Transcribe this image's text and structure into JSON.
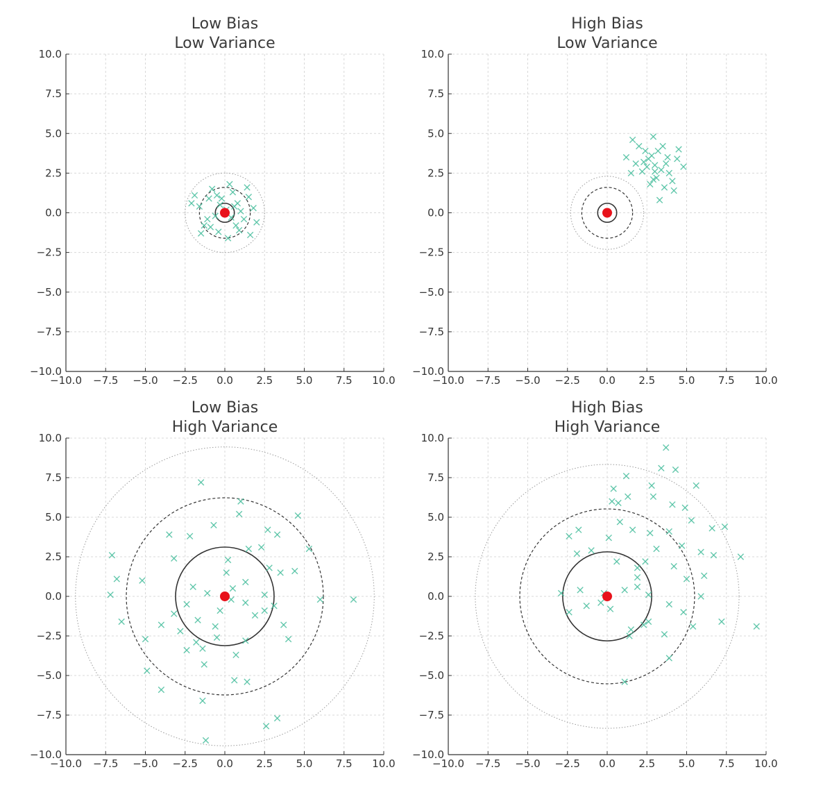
{
  "chart_data": [
    {
      "type": "scatter",
      "title_line1": "Low Bias",
      "title_line2": "Low Variance",
      "xlim": [
        -10,
        10
      ],
      "ylim": [
        -10,
        10
      ],
      "grid": true,
      "x_ticks": [
        "−10.0",
        "−7.5",
        "−5.0",
        "−2.5",
        "0.0",
        "2.5",
        "5.0",
        "7.5",
        "10.0"
      ],
      "y_ticks": [
        "−10.0",
        "−7.5",
        "−5.0",
        "−2.5",
        "0.0",
        "2.5",
        "5.0",
        "7.5",
        "10.0"
      ],
      "target": [
        0,
        0
      ],
      "rings": [
        0.6,
        1.6,
        2.5
      ],
      "points": [
        [
          0.1,
          0.2
        ],
        [
          -0.3,
          0.5
        ],
        [
          0.4,
          -0.3
        ],
        [
          -0.6,
          -0.2
        ],
        [
          0.8,
          0.6
        ],
        [
          -1.0,
          0.9
        ],
        [
          1.2,
          -0.4
        ],
        [
          -1.3,
          -0.8
        ],
        [
          0.5,
          1.3
        ],
        [
          -0.4,
          -1.2
        ],
        [
          1.5,
          1.0
        ],
        [
          -1.6,
          0.4
        ],
        [
          0.9,
          -1.1
        ],
        [
          -0.8,
          1.5
        ],
        [
          1.8,
          0.3
        ],
        [
          -1.5,
          -1.3
        ],
        [
          0.2,
          -1.6
        ],
        [
          1.4,
          1.6
        ],
        [
          -1.9,
          1.1
        ],
        [
          0.7,
          -0.8
        ],
        [
          -0.2,
          0.9
        ],
        [
          1.0,
          0.1
        ],
        [
          -1.1,
          -0.4
        ],
        [
          0.3,
          1.8
        ],
        [
          2.0,
          -0.6
        ],
        [
          -2.1,
          0.6
        ],
        [
          1.6,
          -1.4
        ],
        [
          -0.5,
          1.1
        ],
        [
          0.6,
          0.4
        ],
        [
          -0.9,
          -0.9
        ]
      ]
    },
    {
      "type": "scatter",
      "title_line1": "High Bias",
      "title_line2": "Low Variance",
      "xlim": [
        -10,
        10
      ],
      "ylim": [
        -10,
        10
      ],
      "grid": true,
      "x_ticks": [
        "−10.0",
        "−7.5",
        "−5.0",
        "−2.5",
        "0.0",
        "2.5",
        "5.0",
        "7.5",
        "10.0"
      ],
      "y_ticks": [
        "−10.0",
        "−7.5",
        "−5.0",
        "−2.5",
        "0.0",
        "2.5",
        "5.0",
        "7.5",
        "10.0"
      ],
      "target": [
        0,
        0
      ],
      "rings": [
        0.6,
        1.6,
        2.3
      ],
      "points": [
        [
          3.0,
          3.0
        ],
        [
          2.6,
          3.4
        ],
        [
          3.4,
          2.7
        ],
        [
          2.2,
          2.6
        ],
        [
          3.8,
          3.5
        ],
        [
          2.9,
          2.1
        ],
        [
          3.2,
          3.9
        ],
        [
          2.4,
          3.9
        ],
        [
          3.9,
          2.5
        ],
        [
          1.8,
          3.1
        ],
        [
          4.4,
          3.4
        ],
        [
          2.7,
          1.8
        ],
        [
          3.5,
          4.2
        ],
        [
          2.0,
          4.2
        ],
        [
          4.1,
          2.0
        ],
        [
          1.5,
          2.5
        ],
        [
          2.9,
          4.8
        ],
        [
          3.6,
          1.6
        ],
        [
          4.8,
          2.9
        ],
        [
          1.6,
          4.6
        ],
        [
          4.2,
          1.4
        ],
        [
          3.3,
          0.8
        ],
        [
          1.2,
          3.5
        ],
        [
          3.0,
          2.6
        ],
        [
          2.5,
          2.9
        ],
        [
          3.7,
          3.1
        ],
        [
          2.3,
          3.2
        ],
        [
          4.5,
          4.0
        ],
        [
          2.8,
          3.6
        ],
        [
          3.1,
          2.2
        ]
      ]
    },
    {
      "type": "scatter",
      "title_line1": "Low Bias",
      "title_line2": "High Variance",
      "xlim": [
        -10,
        10
      ],
      "ylim": [
        -10,
        10
      ],
      "grid": true,
      "x_ticks": [
        "−10.0",
        "−7.5",
        "−5.0",
        "−2.5",
        "0.0",
        "2.5",
        "5.0",
        "7.5",
        "10.0"
      ],
      "y_ticks": [
        "−10.0",
        "−7.5",
        "−5.0",
        "−2.5",
        "0.0",
        "2.5",
        "5.0",
        "7.5",
        "10.0"
      ],
      "target": [
        0,
        0
      ],
      "rings": [
        3.1,
        6.2,
        9.4
      ],
      "points": [
        [
          -1.5,
          7.2
        ],
        [
          1.0,
          6.0
        ],
        [
          -3.5,
          3.9
        ],
        [
          0.9,
          5.2
        ],
        [
          -0.7,
          4.5
        ],
        [
          2.7,
          4.2
        ],
        [
          3.3,
          3.9
        ],
        [
          4.6,
          5.1
        ],
        [
          -2.2,
          3.8
        ],
        [
          -3.2,
          2.4
        ],
        [
          1.5,
          3.0
        ],
        [
          2.3,
          3.1
        ],
        [
          5.3,
          3.0
        ],
        [
          -7.1,
          2.6
        ],
        [
          -6.8,
          1.1
        ],
        [
          -5.2,
          1.0
        ],
        [
          -2.0,
          0.6
        ],
        [
          -1.1,
          0.2
        ],
        [
          0.5,
          0.5
        ],
        [
          1.3,
          0.9
        ],
        [
          2.5,
          0.1
        ],
        [
          3.5,
          1.5
        ],
        [
          4.4,
          1.6
        ],
        [
          6.0,
          -0.2
        ],
        [
          8.1,
          -0.2
        ],
        [
          -7.2,
          0.1
        ],
        [
          -6.5,
          -1.6
        ],
        [
          -5.0,
          -2.7
        ],
        [
          -4.0,
          -1.8
        ],
        [
          -3.2,
          -1.1
        ],
        [
          -2.4,
          -0.5
        ],
        [
          -1.7,
          -1.5
        ],
        [
          -0.6,
          -1.9
        ],
        [
          0.4,
          -0.2
        ],
        [
          1.3,
          -0.4
        ],
        [
          2.5,
          -0.9
        ],
        [
          3.7,
          -1.8
        ],
        [
          4.0,
          -2.7
        ],
        [
          -2.4,
          -3.4
        ],
        [
          -1.4,
          -3.3
        ],
        [
          -0.5,
          -2.6
        ],
        [
          0.7,
          -3.7
        ],
        [
          1.3,
          -2.8
        ],
        [
          -1.3,
          -4.3
        ],
        [
          -4.9,
          -4.7
        ],
        [
          -4.0,
          -5.9
        ],
        [
          -1.4,
          -6.6
        ],
        [
          0.6,
          -5.3
        ],
        [
          1.4,
          -5.4
        ],
        [
          2.6,
          -8.2
        ],
        [
          3.3,
          -7.7
        ],
        [
          -1.2,
          -9.1
        ],
        [
          0.1,
          1.5
        ],
        [
          -0.3,
          -0.9
        ],
        [
          1.9,
          -1.2
        ],
        [
          2.8,
          1.8
        ],
        [
          -2.8,
          -2.2
        ],
        [
          0.2,
          2.3
        ],
        [
          -1.8,
          -2.9
        ],
        [
          3.1,
          -0.6
        ]
      ]
    },
    {
      "type": "scatter",
      "title_line1": "High Bias",
      "title_line2": "High Variance",
      "xlim": [
        -10,
        10
      ],
      "ylim": [
        -10,
        10
      ],
      "grid": true,
      "x_ticks": [
        "−10.0",
        "−7.5",
        "−5.0",
        "−2.5",
        "0.0",
        "2.5",
        "5.0",
        "7.5",
        "10.0"
      ],
      "y_ticks": [
        "−10.0",
        "−7.5",
        "−5.0",
        "−2.5",
        "0.0",
        "2.5",
        "5.0",
        "7.5",
        "10.0"
      ],
      "target": [
        0,
        0
      ],
      "rings": [
        2.8,
        5.5,
        8.3
      ],
      "points": [
        [
          3.7,
          9.4
        ],
        [
          4.3,
          8.0
        ],
        [
          3.4,
          8.1
        ],
        [
          2.8,
          7.0
        ],
        [
          5.6,
          7.0
        ],
        [
          1.2,
          7.6
        ],
        [
          0.4,
          6.8
        ],
        [
          1.3,
          6.3
        ],
        [
          0.3,
          6.0
        ],
        [
          2.9,
          6.3
        ],
        [
          4.1,
          5.8
        ],
        [
          4.9,
          5.6
        ],
        [
          5.3,
          4.8
        ],
        [
          7.4,
          4.4
        ],
        [
          0.8,
          4.7
        ],
        [
          -1.8,
          4.2
        ],
        [
          -2.4,
          3.8
        ],
        [
          1.6,
          4.2
        ],
        [
          2.7,
          4.0
        ],
        [
          3.9,
          4.1
        ],
        [
          4.7,
          3.2
        ],
        [
          5.9,
          2.8
        ],
        [
          6.7,
          2.6
        ],
        [
          8.4,
          2.5
        ],
        [
          -1.9,
          2.7
        ],
        [
          -1.0,
          2.9
        ],
        [
          0.1,
          3.7
        ],
        [
          0.6,
          2.2
        ],
        [
          1.9,
          1.8
        ],
        [
          2.4,
          2.2
        ],
        [
          3.1,
          3.0
        ],
        [
          4.2,
          1.9
        ],
        [
          5.0,
          1.1
        ],
        [
          6.1,
          1.3
        ],
        [
          -2.9,
          0.2
        ],
        [
          -1.7,
          0.4
        ],
        [
          -0.2,
          0.2
        ],
        [
          1.1,
          0.4
        ],
        [
          1.9,
          0.6
        ],
        [
          2.6,
          0.1
        ],
        [
          3.9,
          -0.5
        ],
        [
          4.8,
          -1.0
        ],
        [
          5.9,
          0.0
        ],
        [
          7.2,
          -1.6
        ],
        [
          9.4,
          -1.9
        ],
        [
          -2.4,
          -1.0
        ],
        [
          -1.3,
          -0.6
        ],
        [
          -0.4,
          -0.4
        ],
        [
          0.2,
          -0.8
        ],
        [
          1.5,
          -2.1
        ],
        [
          2.3,
          -1.8
        ],
        [
          3.6,
          -2.4
        ],
        [
          1.4,
          -2.5
        ],
        [
          3.9,
          -3.9
        ],
        [
          1.1,
          -5.4
        ],
        [
          5.4,
          -1.9
        ],
        [
          2.6,
          -1.6
        ],
        [
          6.6,
          4.3
        ],
        [
          0.7,
          5.9
        ],
        [
          1.9,
          1.2
        ]
      ]
    }
  ]
}
